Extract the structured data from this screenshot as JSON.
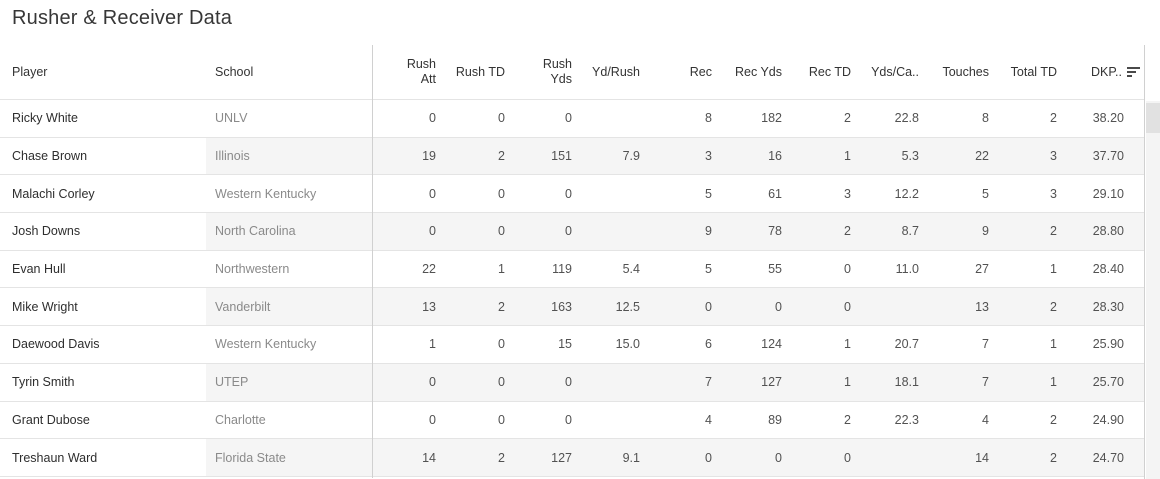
{
  "title": "Rusher & Receiver Data",
  "colors": {
    "title_text": "#373737",
    "header_text": "#333333",
    "player_text": "#2e2e2e",
    "school_text": "#8a8a8a",
    "value_text": "#525252",
    "banding": "#f5f5f5",
    "row_border": "#e4e4e4",
    "divider": "#d0d0d0",
    "scroll_track": "#f4f4f4",
    "scroll_thumb": "#e1e1e1"
  },
  "table": {
    "header": {
      "player": "Player",
      "school": "School"
    },
    "numeric_columns": [
      "Rush\nAtt",
      "Rush TD",
      "Rush\nYds",
      "Yd/Rush",
      "Rec",
      "Rec Yds",
      "Rec TD",
      "Yds/Ca..",
      "Touches",
      "Total TD",
      "DKP.."
    ],
    "sort": {
      "column": "DKP..",
      "direction": "descending"
    },
    "rows": [
      {
        "player": "Ricky White",
        "school": "UNLV",
        "values": [
          "0",
          "0",
          "0",
          "",
          "8",
          "182",
          "2",
          "22.8",
          "8",
          "2",
          "38.20"
        ]
      },
      {
        "player": "Chase Brown",
        "school": "Illinois",
        "values": [
          "19",
          "2",
          "151",
          "7.9",
          "3",
          "16",
          "1",
          "5.3",
          "22",
          "3",
          "37.70"
        ]
      },
      {
        "player": "Malachi Corley",
        "school": "Western Kentucky",
        "values": [
          "0",
          "0",
          "0",
          "",
          "5",
          "61",
          "3",
          "12.2",
          "5",
          "3",
          "29.10"
        ]
      },
      {
        "player": "Josh Downs",
        "school": "North Carolina",
        "values": [
          "0",
          "0",
          "0",
          "",
          "9",
          "78",
          "2",
          "8.7",
          "9",
          "2",
          "28.80"
        ]
      },
      {
        "player": "Evan Hull",
        "school": "Northwestern",
        "values": [
          "22",
          "1",
          "119",
          "5.4",
          "5",
          "55",
          "0",
          "11.0",
          "27",
          "1",
          "28.40"
        ]
      },
      {
        "player": "Mike Wright",
        "school": "Vanderbilt",
        "values": [
          "13",
          "2",
          "163",
          "12.5",
          "0",
          "0",
          "0",
          "",
          "13",
          "2",
          "28.30"
        ]
      },
      {
        "player": "Daewood Davis",
        "school": "Western Kentucky",
        "values": [
          "1",
          "0",
          "15",
          "15.0",
          "6",
          "124",
          "1",
          "20.7",
          "7",
          "1",
          "25.90"
        ]
      },
      {
        "player": "Tyrin Smith",
        "school": "UTEP",
        "values": [
          "0",
          "0",
          "0",
          "",
          "7",
          "127",
          "1",
          "18.1",
          "7",
          "1",
          "25.70"
        ]
      },
      {
        "player": "Grant Dubose",
        "school": "Charlotte",
        "values": [
          "0",
          "0",
          "0",
          "",
          "4",
          "89",
          "2",
          "22.3",
          "4",
          "2",
          "24.90"
        ]
      },
      {
        "player": "Treshaun Ward",
        "school": "Florida State",
        "values": [
          "14",
          "2",
          "127",
          "9.1",
          "0",
          "0",
          "0",
          "",
          "14",
          "2",
          "24.70"
        ]
      }
    ]
  }
}
